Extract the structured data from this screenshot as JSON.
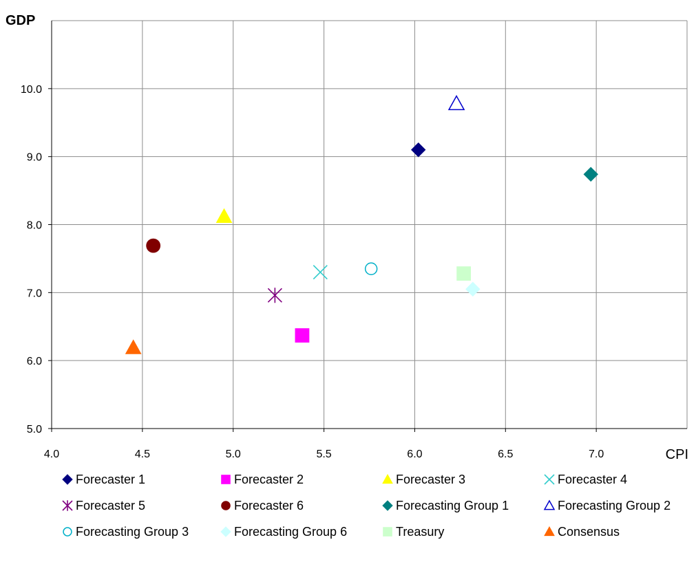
{
  "chart_data": {
    "type": "scatter",
    "title": "",
    "xlabel": "CPI",
    "ylabel": "GDP",
    "xlim": [
      4.0,
      7.5
    ],
    "ylim": [
      5.0,
      11.0
    ],
    "x_ticks": [
      4.0,
      4.5,
      5.0,
      5.5,
      6.0,
      6.5,
      7.0
    ],
    "x_tick_labels": [
      "4.0",
      "4.5",
      "5.0",
      "5.5",
      "6.0",
      "6.5",
      "7.0"
    ],
    "y_ticks": [
      5.0,
      6.0,
      7.0,
      8.0,
      9.0,
      10.0
    ],
    "y_tick_labels": [
      "5.0",
      "6.0",
      "7.0",
      "8.0",
      "9.0",
      "10.0"
    ],
    "grid": true,
    "legend_position": "bottom",
    "series": [
      {
        "name": "Forecaster 1",
        "x": 6.02,
        "y": 9.1,
        "marker": "diamond-filled",
        "color": "#000080"
      },
      {
        "name": "Forecaster 2",
        "x": 5.38,
        "y": 6.37,
        "marker": "square-filled",
        "color": "#ff00ff"
      },
      {
        "name": "Forecaster 3",
        "x": 4.95,
        "y": 8.12,
        "marker": "triangle-filled",
        "color": "#ffff00"
      },
      {
        "name": "Forecaster 4",
        "x": 5.48,
        "y": 7.3,
        "marker": "x",
        "color": "#33cccc"
      },
      {
        "name": "Forecaster 5",
        "x": 5.23,
        "y": 6.96,
        "marker": "asterisk",
        "color": "#800080"
      },
      {
        "name": "Forecaster 6",
        "x": 4.56,
        "y": 7.69,
        "marker": "circle-filled",
        "color": "#800000"
      },
      {
        "name": "Forecasting Group 1",
        "x": 6.97,
        "y": 8.74,
        "marker": "diamond-filled",
        "color": "#008080"
      },
      {
        "name": "Forecasting Group 2",
        "x": 6.23,
        "y": 9.78,
        "marker": "triangle-open",
        "color": "#0000cc"
      },
      {
        "name": "Forecasting Group 3",
        "x": 5.76,
        "y": 7.35,
        "marker": "circle-open",
        "color": "#00b0c8"
      },
      {
        "name": "Forecasting Group 6",
        "x": 6.32,
        "y": 7.05,
        "marker": "diamond-filled",
        "color": "#ccffff"
      },
      {
        "name": "Treasury",
        "x": 6.27,
        "y": 7.28,
        "marker": "square-filled",
        "color": "#ccffcc"
      },
      {
        "name": "Consensus",
        "x": 4.45,
        "y": 6.19,
        "marker": "triangle-filled",
        "color": "#ff6600"
      }
    ]
  }
}
